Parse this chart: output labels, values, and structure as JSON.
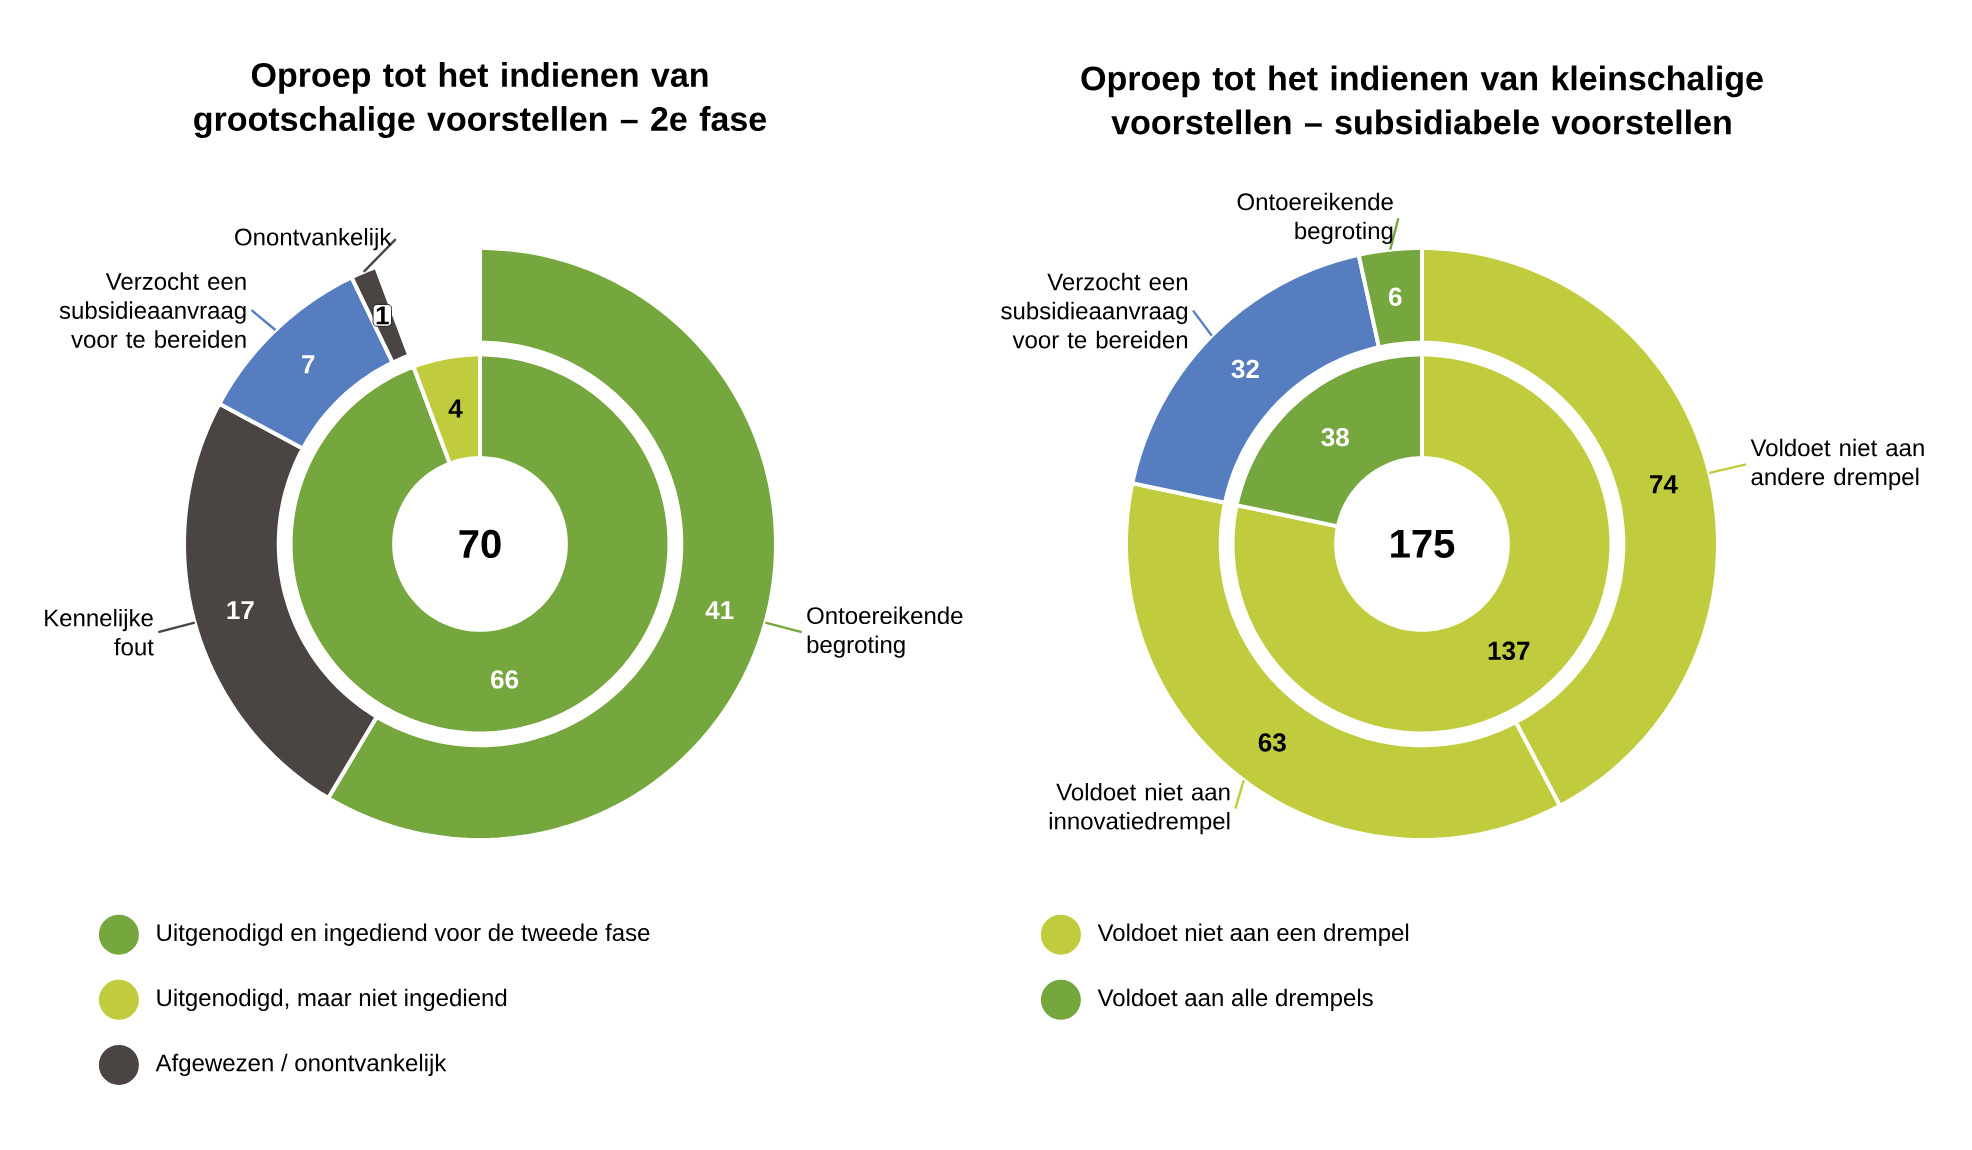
{
  "chart_data": [
    {
      "type": "donut",
      "title": "Oproep tot het indienen van grootschalige voorstellen – 2e fase",
      "categories": [
        "Uitgenodigd en ingediend voor de tweede fase",
        "Uitgenodigd, maar niet ingediend",
        "Afgewezen / onontvankelijk"
      ],
      "values": [
        66,
        4,
        null
      ],
      "colors": [
        "#76a73f",
        "#c0cc3d",
        "#4a4543"
      ],
      "data_labels": true,
      "legend": "bottom",
      "annotations": [
        "70"
      ]
    },
    {
      "type": "donut",
      "categories": [
        "Ontoereikende begroting",
        "Kennelijke fout",
        "Verzocht een subsidieaanvraag voor te bereiden",
        "Onontvankelijk"
      ],
      "values": [
        41,
        17,
        7,
        1
      ],
      "colors": [
        "#76a73f",
        "#4a4543",
        "#557dbf",
        "#4a4543"
      ],
      "value_labels": [
        "41",
        "17",
        "7",
        "1"
      ]
    },
    {
      "type": "donut",
      "title": "Oproep tot het indienen van kleinschalige voorstellen – subsidiabele voorstellen",
      "categories": [
        "Voldoet niet aan een drempel",
        "Voldoet aan alle drempels"
      ],
      "values": [
        137,
        38
      ],
      "colors": [
        "#c0cc3d",
        "#76a73f"
      ],
      "data_labels": true,
      "legend": "bottom",
      "annotations": [
        "175"
      ]
    },
    {
      "type": "donut",
      "categories": [
        "Voldoet niet aan andere drempel",
        "Voldoet niet aan innovatiedrempel",
        "Verzocht een subsidieaanvraag voor te bereiden",
        "Ontoereikende begroting"
      ],
      "values": [
        74,
        63,
        32,
        6
      ],
      "colors": [
        "#c0cc3d",
        "#c0cc3d",
        "#557dbf",
        "#76a73f"
      ],
      "value_labels": [
        "74",
        "63",
        "32",
        "6"
      ]
    }
  ]
}
